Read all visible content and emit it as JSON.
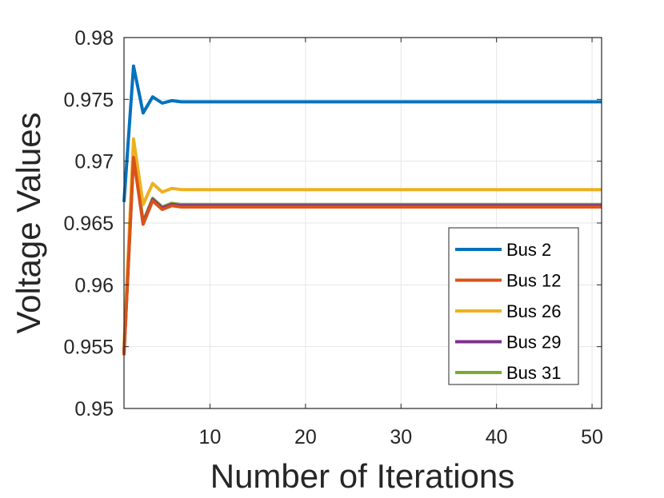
{
  "chart_data": {
    "type": "line",
    "xlabel": "Number of Iterations",
    "ylabel": "Voltage Values",
    "xlim": [
      1,
      51
    ],
    "ylim": [
      0.95,
      0.98
    ],
    "x_ticks": [
      10,
      20,
      30,
      40,
      50
    ],
    "x_tick_labels": [
      "10",
      "20",
      "30",
      "40",
      "50"
    ],
    "y_ticks": [
      0.95,
      0.955,
      0.96,
      0.965,
      0.97,
      0.975,
      0.98
    ],
    "y_tick_labels": [
      "0.95",
      "0.955",
      "0.96",
      "0.965",
      "0.97",
      "0.975",
      "0.98"
    ],
    "grid": true,
    "legend_position": "bottom-right",
    "x": [
      1,
      2,
      3,
      4,
      5,
      6,
      7,
      8,
      51
    ],
    "series": [
      {
        "name": "Bus 2",
        "color": "#0072BD",
        "values": [
          0.9667,
          0.9777,
          0.9739,
          0.9752,
          0.9747,
          0.9749,
          0.9748,
          0.9748,
          0.9748
        ]
      },
      {
        "name": "Bus 12",
        "color": "#D95319",
        "values": [
          0.9543,
          0.9703,
          0.9649,
          0.9668,
          0.9661,
          0.9664,
          0.9663,
          0.9663,
          0.9663
        ]
      },
      {
        "name": "Bus 26",
        "color": "#EDB120",
        "values": [
          0.955,
          0.9718,
          0.9665,
          0.9682,
          0.9675,
          0.9678,
          0.9677,
          0.9677,
          0.9677
        ]
      },
      {
        "name": "Bus 29",
        "color": "#7E2F8E",
        "values": [
          0.9545,
          0.9704,
          0.965,
          0.9669,
          0.9662,
          0.9665,
          0.9664,
          0.9664,
          0.9664
        ]
      },
      {
        "name": "Bus 31",
        "color": "#77AC30",
        "values": [
          0.9546,
          0.9707,
          0.9651,
          0.967,
          0.9663,
          0.9666,
          0.9665,
          0.9665,
          0.9665
        ]
      }
    ]
  }
}
